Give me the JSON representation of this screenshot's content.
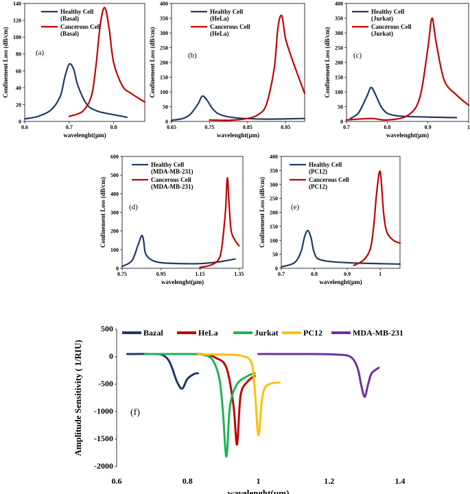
{
  "chart_data": [
    {
      "type": "line",
      "panel": "(a)",
      "xlabel": "wavelenght(µm)",
      "ylabel": "Confinement Loss (dB/cm)",
      "xlim": [
        0.6,
        0.87
      ],
      "ylim": [
        0,
        140
      ],
      "xticks": [
        0.6,
        0.7,
        0.8
      ],
      "xtick_labels": [
        "0.6",
        "0.7",
        "0.8"
      ],
      "yticks": [
        0,
        20,
        40,
        60,
        80,
        100,
        120,
        140
      ],
      "ytick_labels": [
        "0",
        "20",
        "40",
        "60",
        "80",
        "100",
        "120",
        "140"
      ],
      "series": [
        {
          "name": "Healthy Cell",
          "name2": "(Basal)",
          "color": "#1f3864",
          "x": [
            0.6,
            0.63,
            0.66,
            0.68,
            0.69,
            0.7,
            0.71,
            0.72,
            0.74,
            0.76,
            0.78,
            0.8,
            0.83
          ],
          "y": [
            3,
            6,
            14,
            30,
            52,
            68,
            62,
            42,
            20,
            13,
            10,
            8,
            5
          ]
        },
        {
          "name": "Cancerous Cell",
          "name2": "(Basal)",
          "color": "#c00000",
          "x": [
            0.7,
            0.73,
            0.75,
            0.76,
            0.77,
            0.78,
            0.79,
            0.8,
            0.82,
            0.84,
            0.87
          ],
          "y": [
            6,
            12,
            30,
            65,
            115,
            135,
            110,
            70,
            42,
            33,
            23
          ]
        }
      ]
    },
    {
      "type": "line",
      "panel": "(b)",
      "xlabel": "wavelenght(µm)",
      "ylabel": "Confinement Loss (dB/cm)",
      "xlim": [
        0.65,
        1.0
      ],
      "ylim": [
        0,
        400
      ],
      "xticks": [
        0.65,
        0.75,
        0.85,
        0.95
      ],
      "xtick_labels": [
        "0.65",
        "0.75",
        "0.85",
        "0.95"
      ],
      "yticks": [
        0,
        50,
        100,
        150,
        200,
        250,
        300,
        350,
        400
      ],
      "ytick_labels": [
        "0",
        "50",
        "100",
        "150",
        "200",
        "250",
        "300",
        "350",
        "400"
      ],
      "series": [
        {
          "name": "Healthy Cell",
          "name2": "(HeLa)",
          "color": "#1f3864",
          "x": [
            0.65,
            0.68,
            0.7,
            0.72,
            0.73,
            0.74,
            0.76,
            0.78,
            0.82,
            0.9,
            1.0
          ],
          "y": [
            4,
            10,
            25,
            60,
            85,
            78,
            40,
            22,
            12,
            8,
            10
          ]
        },
        {
          "name": "Cancerous Cell",
          "name2": "(HeLa)",
          "color": "#c00000",
          "x": [
            0.75,
            0.8,
            0.85,
            0.88,
            0.9,
            0.92,
            0.93,
            0.94,
            0.95,
            0.97,
            1.0
          ],
          "y": [
            5,
            4,
            10,
            25,
            60,
            180,
            320,
            358,
            280,
            200,
            95
          ]
        }
      ]
    },
    {
      "type": "line",
      "panel": "(c)",
      "xlabel": "wavelenght(µm)",
      "ylabel": "Confinement Loss (dB/cm)",
      "xlim": [
        0.7,
        1.0
      ],
      "ylim": [
        0,
        400
      ],
      "xticks": [
        0.7,
        0.8,
        0.9,
        1.0
      ],
      "xtick_labels": [
        "0.7",
        "0.8",
        "0.9",
        "1"
      ],
      "yticks": [
        0,
        50,
        100,
        150,
        200,
        250,
        300,
        350,
        400
      ],
      "ytick_labels": [
        "0",
        "50",
        "100",
        "150",
        "200",
        "250",
        "300",
        "350",
        "400"
      ],
      "series": [
        {
          "name": "Healthy Cell",
          "name2": "(Jurkat)",
          "color": "#1f3864",
          "x": [
            0.71,
            0.73,
            0.75,
            0.76,
            0.77,
            0.79,
            0.82,
            0.9,
            0.97
          ],
          "y": [
            10,
            30,
            85,
            115,
            95,
            40,
            20,
            15,
            13
          ]
        },
        {
          "name": "Cancerous Cell",
          "name2": "(Jurkat)",
          "color": "#c00000",
          "x": [
            0.7,
            0.76,
            0.8,
            0.85,
            0.88,
            0.9,
            0.91,
            0.92,
            0.94,
            0.97,
            1.0
          ],
          "y": [
            5,
            10,
            5,
            20,
            80,
            250,
            350,
            270,
            140,
            90,
            55
          ]
        }
      ]
    },
    {
      "type": "line",
      "panel": "(d)",
      "xlabel": "wavelenght(µm)",
      "ylabel": "Confinement Loss (dB/cm)",
      "xlim": [
        0.75,
        1.37
      ],
      "ylim": [
        0,
        600
      ],
      "xticks": [
        0.75,
        0.95,
        1.15,
        1.35
      ],
      "xtick_labels": [
        "0.75",
        "0.95",
        "1.15",
        "1.35"
      ],
      "yticks": [
        0,
        100,
        200,
        300,
        400,
        500,
        600
      ],
      "ytick_labels": [
        "0",
        "100",
        "200",
        "300",
        "400",
        "500",
        "600"
      ],
      "series": [
        {
          "name": "Healthy Cell",
          "name2": "(MDA-MB-231)",
          "color": "#1f3864",
          "x": [
            0.75,
            0.8,
            0.83,
            0.85,
            0.86,
            0.87,
            0.9,
            0.95,
            1.05,
            1.15,
            1.25,
            1.33
          ],
          "y": [
            10,
            40,
            120,
            175,
            150,
            80,
            45,
            30,
            25,
            25,
            35,
            50
          ]
        },
        {
          "name": "Cancerous Cell",
          "name2": "(MDA-MB-231)",
          "color": "#c00000",
          "x": [
            1.15,
            1.2,
            1.24,
            1.26,
            1.28,
            1.29,
            1.3,
            1.31,
            1.33,
            1.35
          ],
          "y": [
            5,
            15,
            40,
            100,
            300,
            485,
            330,
            200,
            150,
            120
          ]
        }
      ]
    },
    {
      "type": "line",
      "panel": "(e)",
      "xlabel": "wavelenght(µm)",
      "ylabel": "Confinement Loss (dB/cm)",
      "xlim": [
        0.7,
        1.06
      ],
      "ylim": [
        0,
        400
      ],
      "xticks": [
        0.7,
        0.8,
        0.9,
        1.0
      ],
      "xtick_labels": [
        "0.7",
        "0.8",
        "0.9",
        "1"
      ],
      "yticks": [
        0,
        50,
        100,
        150,
        200,
        250,
        300,
        350,
        400
      ],
      "ytick_labels": [
        "0",
        "50",
        "100",
        "150",
        "200",
        "250",
        "300",
        "350",
        "400"
      ],
      "series": [
        {
          "name": "Healthy Cell",
          "name2": "(PC12)",
          "color": "#1f3864",
          "x": [
            0.7,
            0.74,
            0.76,
            0.77,
            0.78,
            0.79,
            0.8,
            0.82,
            0.9,
            1.06
          ],
          "y": [
            5,
            20,
            60,
            110,
            135,
            110,
            55,
            30,
            20,
            15
          ]
        },
        {
          "name": "Cancerous Cell",
          "name2": "(PC12)",
          "color": "#c00000",
          "x": [
            0.92,
            0.95,
            0.97,
            0.98,
            0.99,
            1.0,
            1.01,
            1.02,
            1.04,
            1.06
          ],
          "y": [
            10,
            30,
            70,
            150,
            280,
            345,
            200,
            130,
            100,
            90
          ]
        }
      ]
    },
    {
      "type": "line",
      "panel": "(f)",
      "xlabel": "wavelenght(µm)",
      "ylabel": "Amplitude Sensitivity ( 1/RIU)",
      "xlim": [
        0.6,
        1.4
      ],
      "ylim": [
        -2000,
        500
      ],
      "xticks": [
        0.6,
        0.8,
        1.0,
        1.2,
        1.4
      ],
      "xtick_labels": [
        "0.6",
        "0.8",
        "1",
        "1.2",
        "1.4"
      ],
      "yticks": [
        -2000,
        -1500,
        -1000,
        -500,
        0,
        500
      ],
      "ytick_labels": [
        "-2000",
        "-1500",
        "-1000",
        "-500",
        "0",
        "500"
      ],
      "series": [
        {
          "name": "Bazal",
          "color": "#1f3864",
          "x": [
            0.63,
            0.7,
            0.73,
            0.75,
            0.77,
            0.785,
            0.8,
            0.82,
            0.83
          ],
          "y": [
            50,
            50,
            30,
            -100,
            -450,
            -580,
            -400,
            -310,
            -300
          ]
        },
        {
          "name": "HeLa",
          "color": "#c00000",
          "x": [
            0.68,
            0.8,
            0.85,
            0.88,
            0.91,
            0.93,
            0.94,
            0.95,
            0.97,
            0.99
          ],
          "y": [
            50,
            50,
            40,
            -20,
            -200,
            -900,
            -1600,
            -700,
            -450,
            -350
          ]
        },
        {
          "name": "Jurkat",
          "color": "#1fb355",
          "x": [
            0.68,
            0.8,
            0.84,
            0.87,
            0.89,
            0.9,
            0.91,
            0.92,
            0.94,
            0.97,
            0.99
          ],
          "y": [
            50,
            50,
            40,
            -50,
            -400,
            -1000,
            -1820,
            -900,
            -500,
            -350,
            -300
          ]
        },
        {
          "name": "PC12",
          "color": "#ffc000",
          "x": [
            0.83,
            0.9,
            0.95,
            0.98,
            0.99,
            1.0,
            1.01,
            1.02,
            1.04,
            1.06
          ],
          "y": [
            40,
            40,
            20,
            -100,
            -600,
            -1430,
            -800,
            -550,
            -480,
            -470
          ]
        },
        {
          "name": "MDA-MB-231",
          "color": "#7030a0",
          "x": [
            1.0,
            1.15,
            1.22,
            1.26,
            1.28,
            1.29,
            1.3,
            1.31,
            1.32,
            1.34
          ],
          "y": [
            50,
            50,
            40,
            0,
            -200,
            -500,
            -730,
            -500,
            -300,
            -200
          ]
        }
      ]
    }
  ]
}
